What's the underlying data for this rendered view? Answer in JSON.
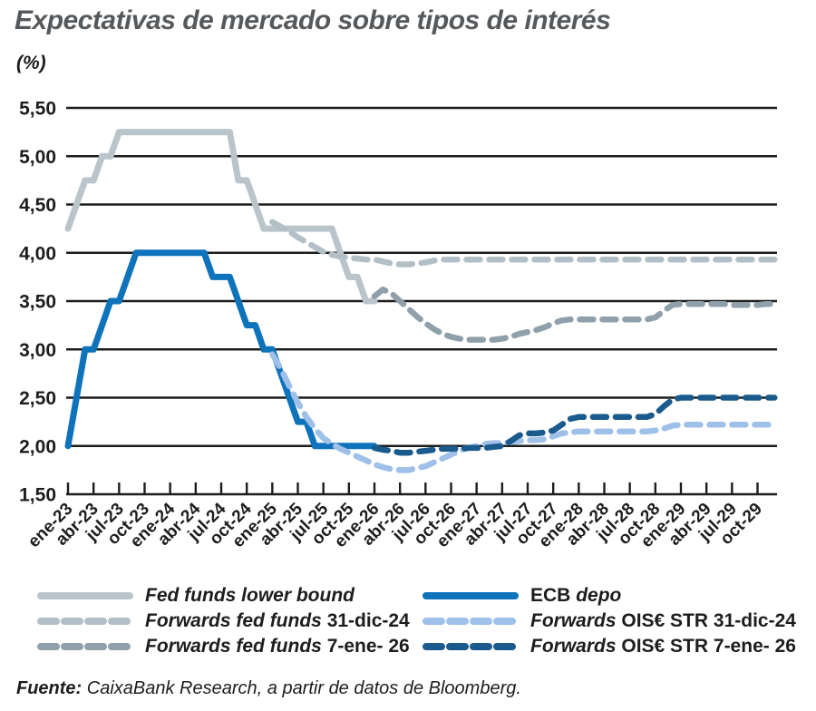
{
  "title": "Expectativas de mercado sobre tipos de interés",
  "unit_label": "(%)",
  "source": {
    "prefix": "Fuente:",
    "text": " CaixaBank Research, a partir de datos de Bloomberg."
  },
  "colors": {
    "title_gray": "#56595c",
    "axis_black": "#1d1d1b",
    "fed_funds_gray": "#b9c5cb",
    "forwards_fed_gray": "#b2bfc6",
    "forwards_fed_dark_gray": "#8fa0aa",
    "ecb_blue": "#0e73bb",
    "oistr_light_blue": "#9fc0e8",
    "oistr_dark_blue": "#1a5a8c"
  },
  "chart_data": {
    "type": "line",
    "title": "Expectativas de mercado sobre tipos de interés",
    "ylabel": "(%)",
    "ylim": [
      1.5,
      5.5
    ],
    "ytick_step": 0.5,
    "ytick_labels": [
      "5,50",
      "5,00",
      "4,50",
      "4,00",
      "3,50",
      "3,00",
      "2,50",
      "2,00",
      "1,50"
    ],
    "x_tick_labels": [
      "ene-23",
      "abr-23",
      "jul-23",
      "oct-23",
      "ene-24",
      "abr-24",
      "jul-24",
      "oct-24",
      "ene-25",
      "abr-25",
      "jul-25",
      "oct-25",
      "ene-26",
      "abr-26",
      "jul-26",
      "oct-26",
      "ene-27",
      "abr-27",
      "jul-27",
      "oct-27",
      "ene-28",
      "abr-28",
      "jul-28",
      "oct-28",
      "ene-29",
      "abr-29",
      "jul-29",
      "oct-29"
    ],
    "x_unit": "months from ene-23, quarterly ticks",
    "months_total": 84,
    "grid": "horizontal only",
    "legend_position": "bottom, two columns",
    "series": [
      {
        "name": "Fed funds lower bound",
        "color": "#b9c5cb",
        "style": "solid",
        "start_month": 0,
        "values": [
          4.25,
          4.5,
          4.75,
          4.75,
          5,
          5,
          5.25,
          5.25,
          5.25,
          5.25,
          5.25,
          5.25,
          5.25,
          5.25,
          5.25,
          5.25,
          5.25,
          5.25,
          5.25,
          5.25,
          4.75,
          4.75,
          4.5,
          4.25,
          4.25,
          4.25,
          4.25,
          4.25,
          4.25,
          4.25,
          4.25,
          4.25,
          4,
          3.75,
          3.75,
          3.5,
          3.5
        ]
      },
      {
        "name": "ECB depo",
        "color": "#0e73bb",
        "style": "solid",
        "start_month": 0,
        "values": [
          2,
          2.5,
          3,
          3,
          3.25,
          3.5,
          3.5,
          3.75,
          4,
          4,
          4,
          4,
          4,
          4,
          4,
          4,
          4,
          3.75,
          3.75,
          3.75,
          3.5,
          3.25,
          3.25,
          3,
          3,
          2.75,
          2.5,
          2.25,
          2.25,
          2,
          2,
          2,
          2,
          2,
          2,
          2,
          2
        ]
      },
      {
        "name": "Forwards fed funds 31-dic-24",
        "color": "#b2bfc6",
        "style": "dashed",
        "start_month": 24,
        "values": [
          4.32,
          4.27,
          4.22,
          4.16,
          4.11,
          4.06,
          4.01,
          3.98,
          3.96,
          3.95,
          3.94,
          3.93,
          3.93,
          3.91,
          3.89,
          3.88,
          3.88,
          3.89,
          3.9,
          3.92,
          3.93,
          3.93,
          3.93,
          3.93,
          3.93,
          3.93,
          3.93,
          3.93,
          3.93,
          3.93,
          3.93,
          3.93,
          3.93,
          3.93,
          3.93,
          3.93,
          3.93,
          3.93,
          3.93,
          3.93,
          3.93,
          3.93,
          3.93,
          3.93,
          3.93,
          3.93,
          3.93,
          3.93,
          3.93,
          3.93,
          3.93,
          3.93,
          3.93,
          3.93,
          3.93,
          3.93,
          3.93,
          3.93,
          3.93,
          3.93
        ]
      },
      {
        "name": "Forwards OIS€ STR 31-dic-24",
        "color": "#9fc0e8",
        "style": "dashed",
        "start_month": 24,
        "values": [
          2.95,
          2.8,
          2.62,
          2.45,
          2.3,
          2.18,
          2.08,
          2.02,
          1.97,
          1.93,
          1.89,
          1.85,
          1.81,
          1.78,
          1.76,
          1.75,
          1.75,
          1.77,
          1.79,
          1.83,
          1.87,
          1.91,
          1.95,
          1.98,
          2,
          2.02,
          2.03,
          2.03,
          2.04,
          2.05,
          2.06,
          2.06,
          2.07,
          2.1,
          2.13,
          2.14,
          2.15,
          2.15,
          2.15,
          2.15,
          2.15,
          2.15,
          2.15,
          2.15,
          2.15,
          2.16,
          2.18,
          2.21,
          2.22,
          2.22,
          2.22,
          2.22,
          2.22,
          2.22,
          2.22,
          2.22,
          2.22,
          2.22,
          2.22,
          2.22
        ]
      },
      {
        "name": "Forwards fed funds 7-ene- 26",
        "color": "#8fa0aa",
        "style": "dashed",
        "start_month": 36,
        "values": [
          3.55,
          3.62,
          3.58,
          3.5,
          3.42,
          3.34,
          3.27,
          3.21,
          3.16,
          3.13,
          3.11,
          3.1,
          3.1,
          3.1,
          3.1,
          3.11,
          3.13,
          3.16,
          3.18,
          3.2,
          3.23,
          3.27,
          3.3,
          3.31,
          3.31,
          3.31,
          3.31,
          3.31,
          3.31,
          3.31,
          3.31,
          3.31,
          3.31,
          3.33,
          3.4,
          3.46,
          3.47,
          3.47,
          3.47,
          3.47,
          3.47,
          3.47,
          3.46,
          3.46,
          3.46,
          3.46,
          3.47,
          3.47
        ]
      },
      {
        "name": "Forwards OIS€ STR 7-ene- 26",
        "color": "#1a5a8c",
        "style": "dashed",
        "start_month": 36,
        "values": [
          1.98,
          1.96,
          1.95,
          1.93,
          1.93,
          1.94,
          1.95,
          1.96,
          1.97,
          1.97,
          1.97,
          1.98,
          1.98,
          1.98,
          1.99,
          2,
          2.05,
          2.11,
          2.13,
          2.13,
          2.14,
          2.16,
          2.22,
          2.28,
          2.3,
          2.3,
          2.3,
          2.3,
          2.3,
          2.3,
          2.3,
          2.3,
          2.3,
          2.33,
          2.41,
          2.48,
          2.5,
          2.5,
          2.5,
          2.5,
          2.5,
          2.5,
          2.5,
          2.5,
          2.5,
          2.5,
          2.5,
          2.5
        ]
      }
    ]
  },
  "legend": {
    "columns": [
      {
        "items": [
          {
            "style": "solid",
            "color": "#b9c5cb",
            "swatch_name": "fed-funds-lower-bound-swatch",
            "parts": [
              {
                "t": "Fed funds lower bound",
                "i": true
              }
            ]
          },
          {
            "style": "dashed",
            "color": "#b2bfc6",
            "swatch_name": "forwards-fed-funds-31dic24-swatch",
            "parts": [
              {
                "t": "Forwards fed funds",
                "i": true
              },
              {
                "t": " 31-dic-24",
                "i": false
              }
            ]
          },
          {
            "style": "dashed",
            "color": "#8fa0aa",
            "swatch_name": "forwards-fed-funds-7ene26-swatch",
            "parts": [
              {
                "t": "Forwards fed funds",
                "i": true
              },
              {
                "t": " 7-ene- 26",
                "i": false
              }
            ]
          }
        ]
      },
      {
        "items": [
          {
            "style": "solid",
            "color": "#0e73bb",
            "swatch_name": "ecb-depo-swatch",
            "parts": [
              {
                "t": "ECB ",
                "i": false
              },
              {
                "t": "depo",
                "i": true
              }
            ]
          },
          {
            "style": "dashed",
            "color": "#9fc0e8",
            "swatch_name": "forwards-oistr-31dic24-swatch",
            "parts": [
              {
                "t": "Forwards",
                "i": true
              },
              {
                "t": " OIS€ STR 31-dic-24",
                "i": false
              }
            ]
          },
          {
            "style": "dashed",
            "color": "#1a5a8c",
            "swatch_name": "forwards-oistr-7ene26-swatch",
            "parts": [
              {
                "t": "Forwards",
                "i": true
              },
              {
                "t": " OIS€ STR 7-ene- 26",
                "i": false
              }
            ]
          }
        ]
      }
    ]
  }
}
